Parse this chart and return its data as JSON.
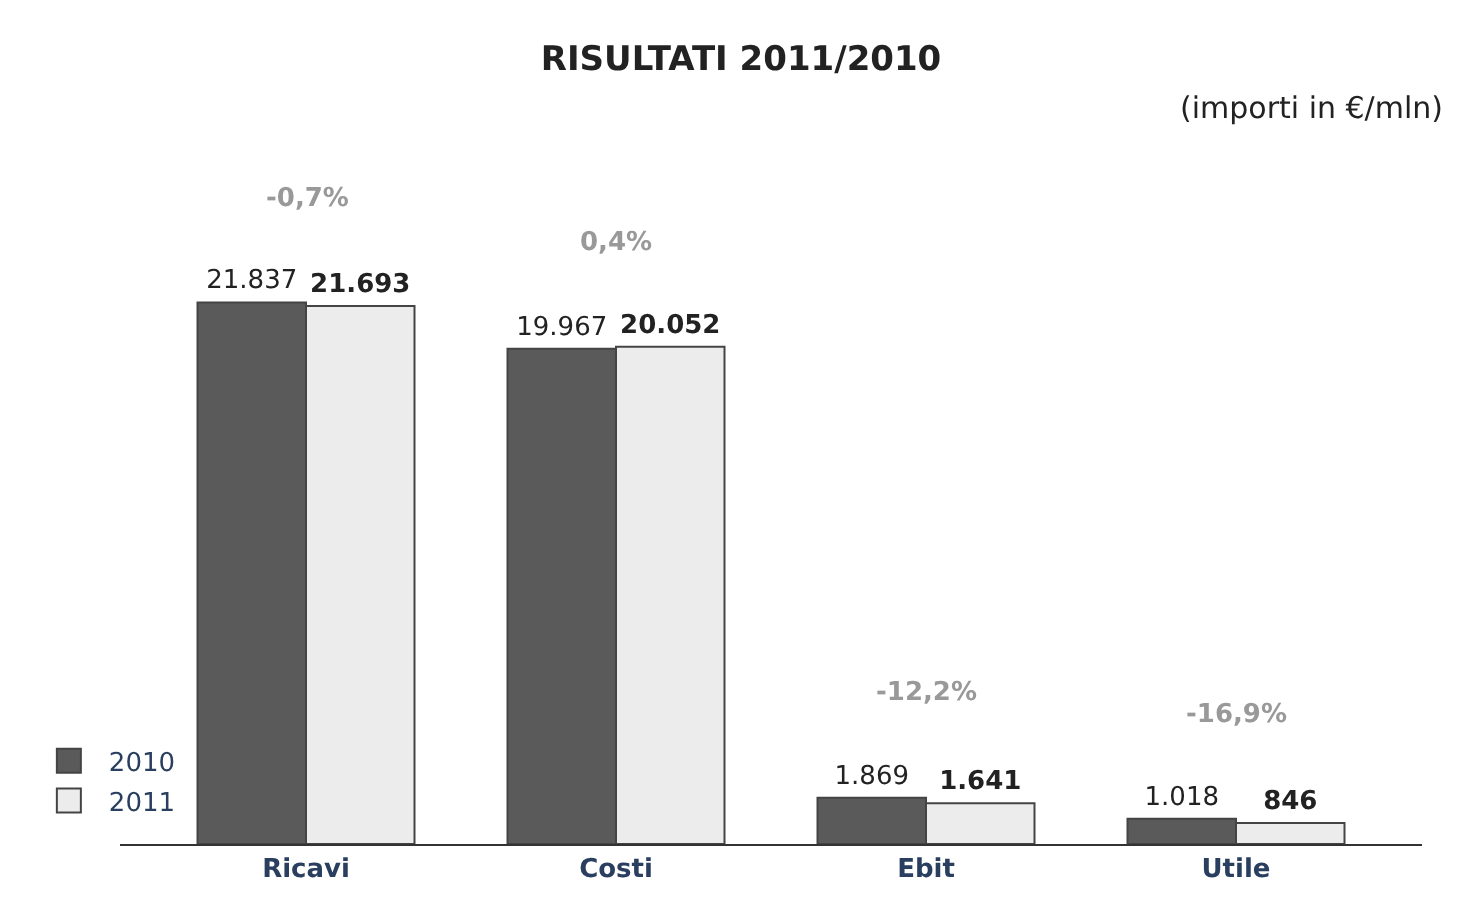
{
  "chart_data": {
    "type": "bar",
    "title": "RISULTATI 2011/2010",
    "subtitle": "(importi in €/mln)",
    "categories": [
      "Ricavi",
      "Costi",
      "Ebit",
      "Utile"
    ],
    "series": [
      {
        "name": "2010",
        "color": "#5a5a5a",
        "values": [
          21837,
          19967,
          1869,
          1018
        ],
        "value_labels": [
          "21.837",
          "19.967",
          "1.869",
          "1.018"
        ]
      },
      {
        "name": "2011",
        "color": "#ececec",
        "values": [
          21693,
          20052,
          1641,
          846
        ],
        "value_labels": [
          "21.693",
          "20.052",
          "1.641",
          "846"
        ]
      }
    ],
    "annotations": [
      "-0,7%",
      "0,4%",
      "-12,2%",
      "-16,9%"
    ],
    "legend": "bottom left"
  }
}
